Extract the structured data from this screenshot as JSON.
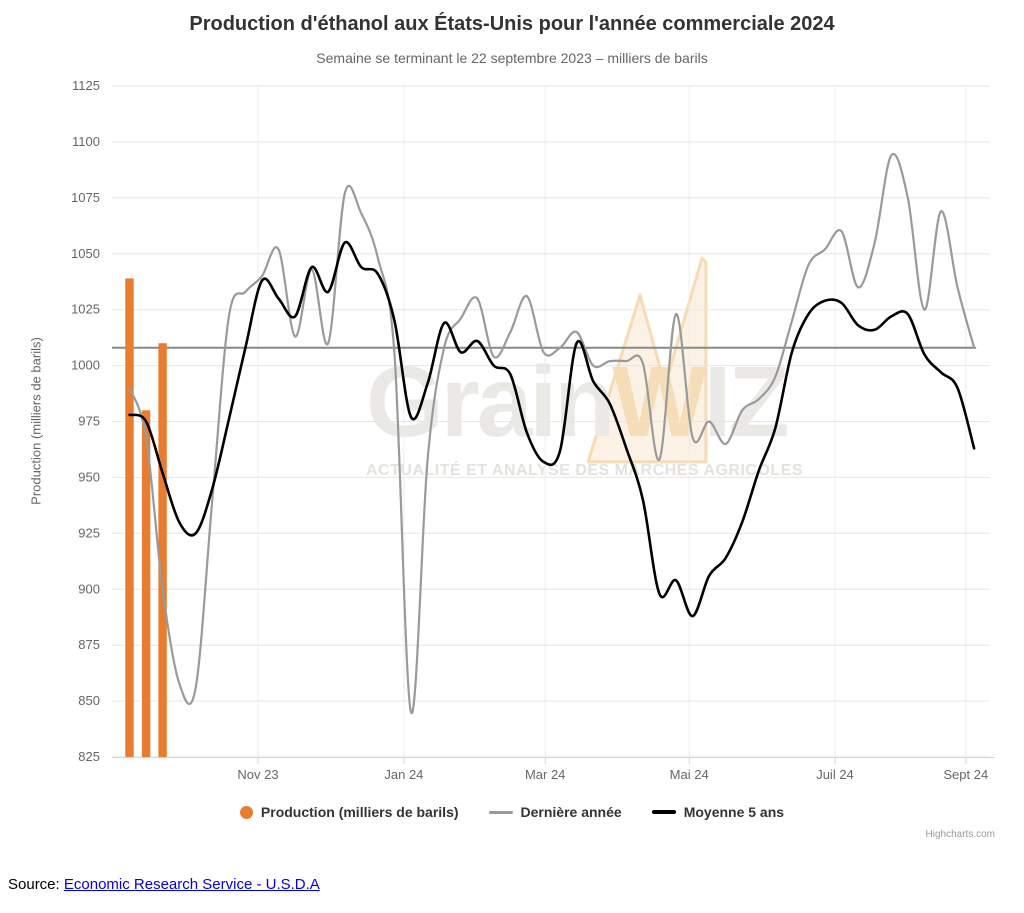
{
  "header": {
    "title": "Production d'éthanol aux États-Unis pour l'année commerciale 2024",
    "subtitle": "Semaine se terminant le 22 septembre 2023 – milliers de barils"
  },
  "chart_data": {
    "type": "bar+line",
    "title": "Production d'éthanol aux États-Unis pour l'année commerciale 2024",
    "subtitle": "Semaine se terminant le 22 septembre 2023 – milliers de barils",
    "ylabel": "Production (milliers de barils)",
    "ylim": [
      825,
      1125
    ],
    "y_tick_interval": 25,
    "grid": true,
    "legend_position": "bottom",
    "x_axis": {
      "tick_labels": [
        "Nov 23",
        "Jan 24",
        "Mar 24",
        "Mai 24",
        "Juil 24",
        "Sept 24"
      ],
      "tick_weeks": [
        7.76,
        16.57,
        25.1,
        33.8,
        42.6,
        50.5
      ]
    },
    "plotline_value": 1008,
    "weeks_span": 52,
    "series": [
      {
        "name": "Production (milliers de barils)",
        "type": "bar",
        "color": "#e87c2f",
        "weeks": [
          0,
          1,
          2
        ],
        "values": [
          1039,
          980,
          1010
        ]
      },
      {
        "name": "Dernière année",
        "type": "line",
        "color": "#9a9a9a",
        "values": [
          990,
          968,
          900,
          858,
          856,
          940,
          1022,
          1033,
          1040,
          1052,
          1013,
          1043,
          1010,
          1077,
          1068,
          1048,
          1005,
          845,
          958,
          1008,
          1021,
          1030,
          1004,
          1015,
          1031,
          1006,
          1008,
          1015,
          1000,
          1002,
          1002,
          1001,
          958,
          1023,
          968,
          975,
          965,
          980,
          985,
          995,
          1020,
          1045,
          1052,
          1060,
          1035,
          1055,
          1094,
          1075,
          1025,
          1069,
          1035,
          1008
        ]
      },
      {
        "name": "Moyenne 5 ans",
        "type": "line",
        "color": "#000000",
        "values": [
          978,
          975,
          952,
          930,
          925,
          945,
          976,
          1008,
          1038,
          1030,
          1022,
          1044,
          1033,
          1055,
          1044,
          1041,
          1020,
          977,
          992,
          1019,
          1006,
          1011,
          1000,
          996,
          970,
          957,
          962,
          1010,
          993,
          983,
          963,
          940,
          898,
          904,
          888,
          906,
          914,
          930,
          953,
          972,
          1006,
          1023,
          1029,
          1028,
          1018,
          1016,
          1022,
          1023,
          1005,
          997,
          990,
          963
        ]
      }
    ]
  },
  "axes": {
    "y_title": "Production (milliers de barils)"
  },
  "legend": {
    "items": [
      {
        "label": "Production (milliers de barils)",
        "marker": "circle",
        "color": "#e87c2f"
      },
      {
        "label": "Dernière année",
        "marker": "line",
        "color": "#9a9a9a"
      },
      {
        "label": "Moyenne 5 ans",
        "marker": "line-thick",
        "color": "#000000"
      }
    ]
  },
  "watermark": {
    "part1": "Grain",
    "part2": "W",
    "part3": "IZ",
    "tagline": "ACTUALITÉ ET ANALYSE DES MARCHÉS AGRICOLES"
  },
  "credits": "Highcharts.com",
  "source": {
    "prefix": "Source: ",
    "link_text": "Economic Research Service - U.S.D.A"
  },
  "colors": {
    "bar_orange": "#e87c2f",
    "line_gray": "#9a9a9a",
    "line_black": "#000000",
    "plotline": "#888888",
    "gridline": "#e6e6e6",
    "x_gridline": "#ececec",
    "axis_line": "#ccd6eb",
    "label_gray": "#666666",
    "title_color": "#333333",
    "watermark_gray": "#ebe9e6",
    "watermark_orange": "#f6ddba"
  }
}
